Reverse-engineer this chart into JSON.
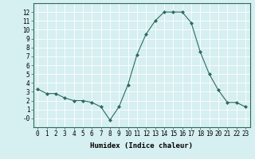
{
  "x": [
    0,
    1,
    2,
    3,
    4,
    5,
    6,
    7,
    8,
    9,
    10,
    11,
    12,
    13,
    14,
    15,
    16,
    17,
    18,
    19,
    20,
    21,
    22,
    23
  ],
  "y": [
    3.3,
    2.8,
    2.8,
    2.3,
    2.0,
    2.0,
    1.8,
    1.3,
    -0.2,
    1.3,
    3.8,
    7.2,
    9.5,
    11.0,
    12.0,
    12.0,
    12.0,
    10.8,
    7.5,
    5.0,
    3.2,
    1.8,
    1.8,
    1.3
  ],
  "line_color": "#2e6b5e",
  "marker": "D",
  "marker_size": 2,
  "bg_color": "#d6eff0",
  "grid_color": "#ffffff",
  "xlabel": "Humidex (Indice chaleur)",
  "xlim": [
    -0.5,
    23.5
  ],
  "ylim": [
    -1,
    13
  ],
  "xticks": [
    0,
    1,
    2,
    3,
    4,
    5,
    6,
    7,
    8,
    9,
    10,
    11,
    12,
    13,
    14,
    15,
    16,
    17,
    18,
    19,
    20,
    21,
    22,
    23
  ],
  "yticks": [
    0,
    1,
    2,
    3,
    4,
    5,
    6,
    7,
    8,
    9,
    10,
    11,
    12
  ],
  "xlabel_fontsize": 6.5,
  "tick_fontsize": 5.5,
  "linewidth": 0.8,
  "spine_color": "#2e6b5e"
}
